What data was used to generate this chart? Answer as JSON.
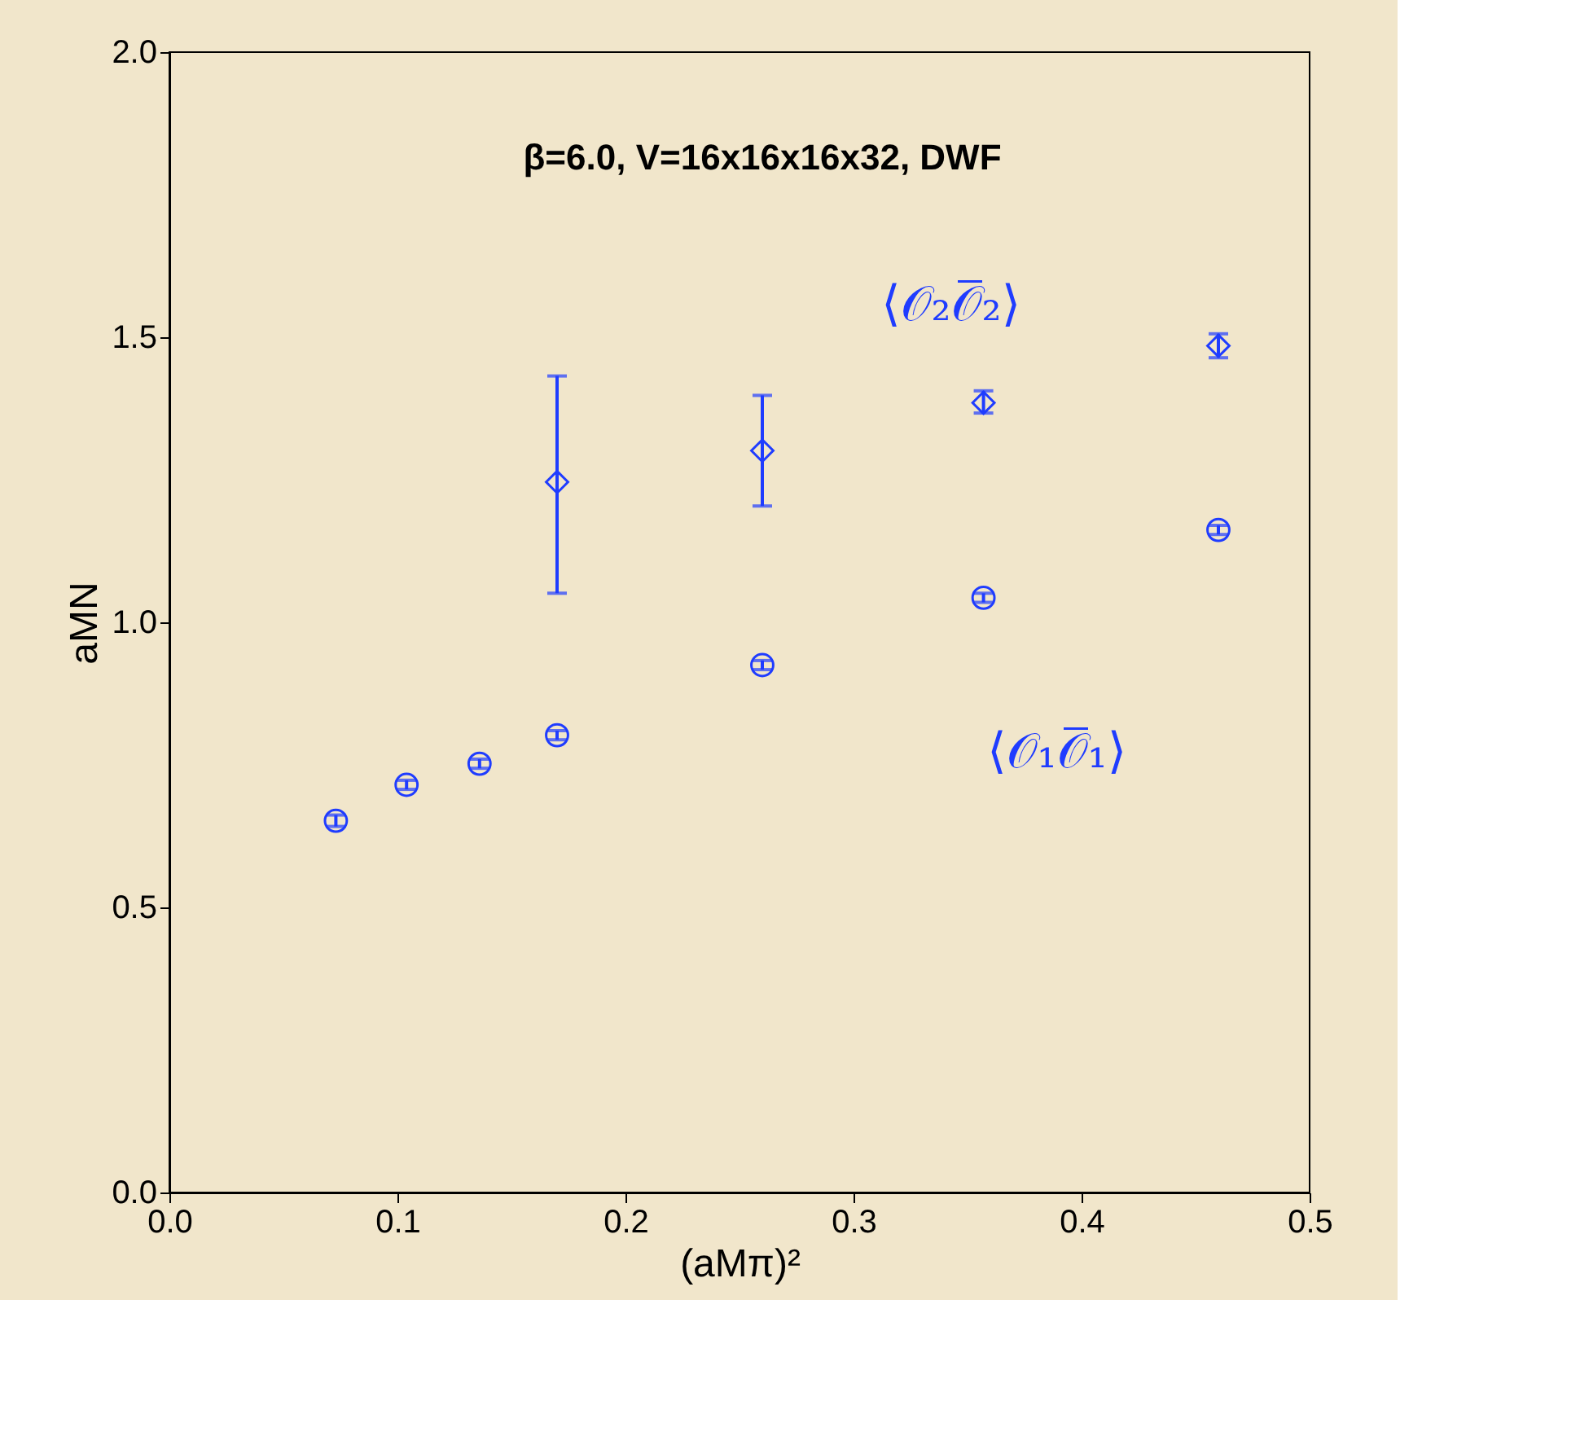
{
  "chart_data": {
    "type": "scatter",
    "title": "β=6.0, V=16x16x16x32, DWF",
    "xlabel": "(aMπ)²",
    "ylabel": "aMN",
    "xlim": [
      0,
      0.5
    ],
    "xticks": [
      {
        "value": 0,
        "label": "0.0"
      },
      0.1,
      0.2,
      0.3,
      0.4,
      0.5
    ],
    "ylim": [
      0,
      2
    ],
    "yticks": [
      {
        "value": 0,
        "label": "0.0"
      },
      0.5,
      {
        "value": 1,
        "label": "1.0"
      },
      1.5,
      {
        "value": 2,
        "label": "2.0"
      }
    ],
    "grid": false,
    "series": [
      {
        "name": "⟨𝒪₁𝒪̅₁⟩",
        "color": "#1f3cff",
        "marker": "circle",
        "x": [
          0.073,
          0.104,
          0.136,
          0.17,
          0.26,
          0.357,
          0.46
        ],
        "values": [
          0.652,
          0.715,
          0.752,
          0.802,
          0.925,
          1.043,
          1.162
        ],
        "errors": [
          0.01,
          0.008,
          0.008,
          0.008,
          0.008,
          0.008,
          0.008
        ]
      },
      {
        "name": "⟨𝒪₂𝒪̅₂⟩",
        "color": "#1f3cff",
        "marker": "diamond",
        "x": [
          0.17,
          0.26,
          0.357,
          0.46
        ],
        "values": [
          1.246,
          1.301,
          1.385,
          1.485
        ],
        "errors": [
          [
            1.051,
            1.432
          ],
          [
            1.204,
            1.398
          ],
          [
            1.367,
            1.406
          ],
          [
            1.464,
            1.506
          ]
        ]
      }
    ]
  }
}
